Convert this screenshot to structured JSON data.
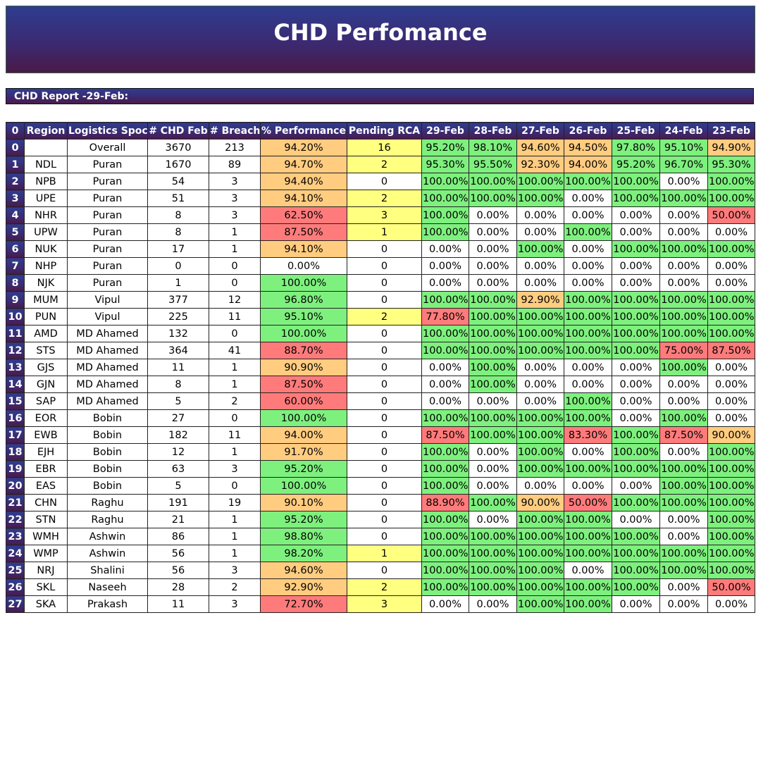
{
  "header": {
    "title": "CHD Perfomance"
  },
  "report": {
    "title": "CHD Report -29-Feb:"
  },
  "colors": {
    "header_gradient_top": "#2e3d8f",
    "header_gradient_bottom": "#4a1a48",
    "green": "#7ef07e",
    "orange": "#ffcc80",
    "red": "#ff7b7b",
    "yellow": "#ffff80"
  },
  "table": {
    "columns": [
      "0",
      "Region",
      "Logistics Spoc",
      "# CHD Feb",
      "# Breach",
      "% Performance",
      "Pending RCA",
      "29-Feb",
      "28-Feb",
      "27-Feb",
      "26-Feb",
      "25-Feb",
      "24-Feb",
      "23-Feb"
    ],
    "rows": [
      {
        "idx": "0",
        "region": "",
        "spoc": "Overall",
        "chd": "3670",
        "breach": "213",
        "perf": "94.20%",
        "perf_c": "o",
        "rca": "16",
        "rca_c": "y",
        "days": [
          "95.20%",
          "98.10%",
          "94.60%",
          "94.50%",
          "97.80%",
          "95.10%",
          "94.90%"
        ],
        "day_c": [
          "g",
          "g",
          "o",
          "o",
          "g",
          "g",
          "o"
        ]
      },
      {
        "idx": "1",
        "region": "NDL",
        "spoc": "Puran",
        "chd": "1670",
        "breach": "89",
        "perf": "94.70%",
        "perf_c": "o",
        "rca": "2",
        "rca_c": "y",
        "days": [
          "95.30%",
          "95.50%",
          "92.30%",
          "94.00%",
          "95.20%",
          "96.70%",
          "95.30%"
        ],
        "day_c": [
          "g",
          "g",
          "o",
          "o",
          "g",
          "g",
          "g"
        ]
      },
      {
        "idx": "2",
        "region": "NPB",
        "spoc": "Puran",
        "chd": "54",
        "breach": "3",
        "perf": "94.40%",
        "perf_c": "o",
        "rca": "0",
        "rca_c": "w",
        "days": [
          "100.00%",
          "100.00%",
          "100.00%",
          "100.00%",
          "100.00%",
          "0.00%",
          "100.00%"
        ],
        "day_c": [
          "g",
          "g",
          "g",
          "g",
          "g",
          "w",
          "g"
        ]
      },
      {
        "idx": "3",
        "region": "UPE",
        "spoc": "Puran",
        "chd": "51",
        "breach": "3",
        "perf": "94.10%",
        "perf_c": "o",
        "rca": "2",
        "rca_c": "y",
        "days": [
          "100.00%",
          "100.00%",
          "100.00%",
          "0.00%",
          "100.00%",
          "100.00%",
          "100.00%"
        ],
        "day_c": [
          "g",
          "g",
          "g",
          "w",
          "g",
          "g",
          "g"
        ]
      },
      {
        "idx": "4",
        "region": "NHR",
        "spoc": "Puran",
        "chd": "8",
        "breach": "3",
        "perf": "62.50%",
        "perf_c": "r",
        "rca": "3",
        "rca_c": "y",
        "days": [
          "100.00%",
          "0.00%",
          "0.00%",
          "0.00%",
          "0.00%",
          "0.00%",
          "50.00%"
        ],
        "day_c": [
          "g",
          "w",
          "w",
          "w",
          "w",
          "w",
          "r"
        ]
      },
      {
        "idx": "5",
        "region": "UPW",
        "spoc": "Puran",
        "chd": "8",
        "breach": "1",
        "perf": "87.50%",
        "perf_c": "r",
        "rca": "1",
        "rca_c": "y",
        "days": [
          "100.00%",
          "0.00%",
          "0.00%",
          "100.00%",
          "0.00%",
          "0.00%",
          "0.00%"
        ],
        "day_c": [
          "g",
          "w",
          "w",
          "g",
          "w",
          "w",
          "w"
        ]
      },
      {
        "idx": "6",
        "region": "NUK",
        "spoc": "Puran",
        "chd": "17",
        "breach": "1",
        "perf": "94.10%",
        "perf_c": "o",
        "rca": "0",
        "rca_c": "w",
        "days": [
          "0.00%",
          "0.00%",
          "100.00%",
          "0.00%",
          "100.00%",
          "100.00%",
          "100.00%"
        ],
        "day_c": [
          "w",
          "w",
          "g",
          "w",
          "g",
          "g",
          "g"
        ]
      },
      {
        "idx": "7",
        "region": "NHP",
        "spoc": "Puran",
        "chd": "0",
        "breach": "0",
        "perf": "0.00%",
        "perf_c": "w",
        "rca": "0",
        "rca_c": "w",
        "days": [
          "0.00%",
          "0.00%",
          "0.00%",
          "0.00%",
          "0.00%",
          "0.00%",
          "0.00%"
        ],
        "day_c": [
          "w",
          "w",
          "w",
          "w",
          "w",
          "w",
          "w"
        ]
      },
      {
        "idx": "8",
        "region": "NJK",
        "spoc": "Puran",
        "chd": "1",
        "breach": "0",
        "perf": "100.00%",
        "perf_c": "g",
        "rca": "0",
        "rca_c": "w",
        "days": [
          "0.00%",
          "0.00%",
          "0.00%",
          "0.00%",
          "0.00%",
          "0.00%",
          "0.00%"
        ],
        "day_c": [
          "w",
          "w",
          "w",
          "w",
          "w",
          "w",
          "w"
        ]
      },
      {
        "idx": "9",
        "region": "MUM",
        "spoc": "Vipul",
        "chd": "377",
        "breach": "12",
        "perf": "96.80%",
        "perf_c": "g",
        "rca": "0",
        "rca_c": "w",
        "days": [
          "100.00%",
          "100.00%",
          "92.90%",
          "100.00%",
          "100.00%",
          "100.00%",
          "100.00%"
        ],
        "day_c": [
          "g",
          "g",
          "o",
          "g",
          "g",
          "g",
          "g"
        ]
      },
      {
        "idx": "10",
        "region": "PUN",
        "spoc": "Vipul",
        "chd": "225",
        "breach": "11",
        "perf": "95.10%",
        "perf_c": "g",
        "rca": "2",
        "rca_c": "y",
        "days": [
          "77.80%",
          "100.00%",
          "100.00%",
          "100.00%",
          "100.00%",
          "100.00%",
          "100.00%"
        ],
        "day_c": [
          "r",
          "g",
          "g",
          "g",
          "g",
          "g",
          "g"
        ]
      },
      {
        "idx": "11",
        "region": "AMD",
        "spoc": "MD Ahamed",
        "chd": "132",
        "breach": "0",
        "perf": "100.00%",
        "perf_c": "g",
        "rca": "0",
        "rca_c": "w",
        "days": [
          "100.00%",
          "100.00%",
          "100.00%",
          "100.00%",
          "100.00%",
          "100.00%",
          "100.00%"
        ],
        "day_c": [
          "g",
          "g",
          "g",
          "g",
          "g",
          "g",
          "g"
        ]
      },
      {
        "idx": "12",
        "region": "STS",
        "spoc": "MD Ahamed",
        "chd": "364",
        "breach": "41",
        "perf": "88.70%",
        "perf_c": "r",
        "rca": "0",
        "rca_c": "w",
        "days": [
          "100.00%",
          "100.00%",
          "100.00%",
          "100.00%",
          "100.00%",
          "75.00%",
          "87.50%"
        ],
        "day_c": [
          "g",
          "g",
          "g",
          "g",
          "g",
          "r",
          "r"
        ]
      },
      {
        "idx": "13",
        "region": "GJS",
        "spoc": "MD Ahamed",
        "chd": "11",
        "breach": "1",
        "perf": "90.90%",
        "perf_c": "o",
        "rca": "0",
        "rca_c": "w",
        "days": [
          "0.00%",
          "100.00%",
          "0.00%",
          "0.00%",
          "0.00%",
          "100.00%",
          "0.00%"
        ],
        "day_c": [
          "w",
          "g",
          "w",
          "w",
          "w",
          "g",
          "w"
        ]
      },
      {
        "idx": "14",
        "region": "GJN",
        "spoc": "MD Ahamed",
        "chd": "8",
        "breach": "1",
        "perf": "87.50%",
        "perf_c": "r",
        "rca": "0",
        "rca_c": "w",
        "days": [
          "0.00%",
          "100.00%",
          "0.00%",
          "0.00%",
          "0.00%",
          "0.00%",
          "0.00%"
        ],
        "day_c": [
          "w",
          "g",
          "w",
          "w",
          "w",
          "w",
          "w"
        ]
      },
      {
        "idx": "15",
        "region": "SAP",
        "spoc": "MD Ahamed",
        "chd": "5",
        "breach": "2",
        "perf": "60.00%",
        "perf_c": "r",
        "rca": "0",
        "rca_c": "w",
        "days": [
          "0.00%",
          "0.00%",
          "0.00%",
          "100.00%",
          "0.00%",
          "0.00%",
          "0.00%"
        ],
        "day_c": [
          "w",
          "w",
          "w",
          "g",
          "w",
          "w",
          "w"
        ]
      },
      {
        "idx": "16",
        "region": "EOR",
        "spoc": "Bobin",
        "chd": "27",
        "breach": "0",
        "perf": "100.00%",
        "perf_c": "g",
        "rca": "0",
        "rca_c": "w",
        "days": [
          "100.00%",
          "100.00%",
          "100.00%",
          "100.00%",
          "0.00%",
          "100.00%",
          "0.00%"
        ],
        "day_c": [
          "g",
          "g",
          "g",
          "g",
          "w",
          "g",
          "w"
        ]
      },
      {
        "idx": "17",
        "region": "EWB",
        "spoc": "Bobin",
        "chd": "182",
        "breach": "11",
        "perf": "94.00%",
        "perf_c": "o",
        "rca": "0",
        "rca_c": "w",
        "days": [
          "87.50%",
          "100.00%",
          "100.00%",
          "83.30%",
          "100.00%",
          "87.50%",
          "90.00%"
        ],
        "day_c": [
          "r",
          "g",
          "g",
          "r",
          "g",
          "r",
          "o"
        ]
      },
      {
        "idx": "18",
        "region": "EJH",
        "spoc": "Bobin",
        "chd": "12",
        "breach": "1",
        "perf": "91.70%",
        "perf_c": "o",
        "rca": "0",
        "rca_c": "w",
        "days": [
          "100.00%",
          "0.00%",
          "100.00%",
          "0.00%",
          "100.00%",
          "0.00%",
          "100.00%"
        ],
        "day_c": [
          "g",
          "w",
          "g",
          "w",
          "g",
          "w",
          "g"
        ]
      },
      {
        "idx": "19",
        "region": "EBR",
        "spoc": "Bobin",
        "chd": "63",
        "breach": "3",
        "perf": "95.20%",
        "perf_c": "g",
        "rca": "0",
        "rca_c": "w",
        "days": [
          "100.00%",
          "0.00%",
          "100.00%",
          "100.00%",
          "100.00%",
          "100.00%",
          "100.00%"
        ],
        "day_c": [
          "g",
          "w",
          "g",
          "g",
          "g",
          "g",
          "g"
        ]
      },
      {
        "idx": "20",
        "region": "EAS",
        "spoc": "Bobin",
        "chd": "5",
        "breach": "0",
        "perf": "100.00%",
        "perf_c": "g",
        "rca": "0",
        "rca_c": "w",
        "days": [
          "100.00%",
          "0.00%",
          "0.00%",
          "0.00%",
          "0.00%",
          "100.00%",
          "100.00%"
        ],
        "day_c": [
          "g",
          "w",
          "w",
          "w",
          "w",
          "g",
          "g"
        ]
      },
      {
        "idx": "21",
        "region": "CHN",
        "spoc": "Raghu",
        "chd": "191",
        "breach": "19",
        "perf": "90.10%",
        "perf_c": "o",
        "rca": "0",
        "rca_c": "w",
        "days": [
          "88.90%",
          "100.00%",
          "90.00%",
          "50.00%",
          "100.00%",
          "100.00%",
          "100.00%"
        ],
        "day_c": [
          "r",
          "g",
          "o",
          "r",
          "g",
          "g",
          "g"
        ]
      },
      {
        "idx": "22",
        "region": "STN",
        "spoc": "Raghu",
        "chd": "21",
        "breach": "1",
        "perf": "95.20%",
        "perf_c": "g",
        "rca": "0",
        "rca_c": "w",
        "days": [
          "100.00%",
          "0.00%",
          "100.00%",
          "100.00%",
          "0.00%",
          "0.00%",
          "100.00%"
        ],
        "day_c": [
          "g",
          "w",
          "g",
          "g",
          "w",
          "w",
          "g"
        ]
      },
      {
        "idx": "23",
        "region": "WMH",
        "spoc": "Ashwin",
        "chd": "86",
        "breach": "1",
        "perf": "98.80%",
        "perf_c": "g",
        "rca": "0",
        "rca_c": "w",
        "days": [
          "100.00%",
          "100.00%",
          "100.00%",
          "100.00%",
          "100.00%",
          "0.00%",
          "100.00%"
        ],
        "day_c": [
          "g",
          "g",
          "g",
          "g",
          "g",
          "w",
          "g"
        ]
      },
      {
        "idx": "24",
        "region": "WMP",
        "spoc": "Ashwin",
        "chd": "56",
        "breach": "1",
        "perf": "98.20%",
        "perf_c": "g",
        "rca": "1",
        "rca_c": "y",
        "days": [
          "100.00%",
          "100.00%",
          "100.00%",
          "100.00%",
          "100.00%",
          "100.00%",
          "100.00%"
        ],
        "day_c": [
          "g",
          "g",
          "g",
          "g",
          "g",
          "g",
          "g"
        ]
      },
      {
        "idx": "25",
        "region": "NRJ",
        "spoc": "Shalini",
        "chd": "56",
        "breach": "3",
        "perf": "94.60%",
        "perf_c": "o",
        "rca": "0",
        "rca_c": "w",
        "days": [
          "100.00%",
          "100.00%",
          "100.00%",
          "0.00%",
          "100.00%",
          "100.00%",
          "100.00%"
        ],
        "day_c": [
          "g",
          "g",
          "g",
          "w",
          "g",
          "g",
          "g"
        ]
      },
      {
        "idx": "26",
        "region": "SKL",
        "spoc": "Naseeh",
        "chd": "28",
        "breach": "2",
        "perf": "92.90%",
        "perf_c": "o",
        "rca": "2",
        "rca_c": "y",
        "days": [
          "100.00%",
          "100.00%",
          "100.00%",
          "100.00%",
          "100.00%",
          "0.00%",
          "50.00%"
        ],
        "day_c": [
          "g",
          "g",
          "g",
          "g",
          "g",
          "w",
          "r"
        ]
      },
      {
        "idx": "27",
        "region": "SKA",
        "spoc": "Prakash",
        "chd": "11",
        "breach": "3",
        "perf": "72.70%",
        "perf_c": "r",
        "rca": "3",
        "rca_c": "y",
        "days": [
          "0.00%",
          "0.00%",
          "100.00%",
          "100.00%",
          "0.00%",
          "0.00%",
          "0.00%"
        ],
        "day_c": [
          "w",
          "w",
          "g",
          "g",
          "w",
          "w",
          "w"
        ]
      }
    ]
  }
}
